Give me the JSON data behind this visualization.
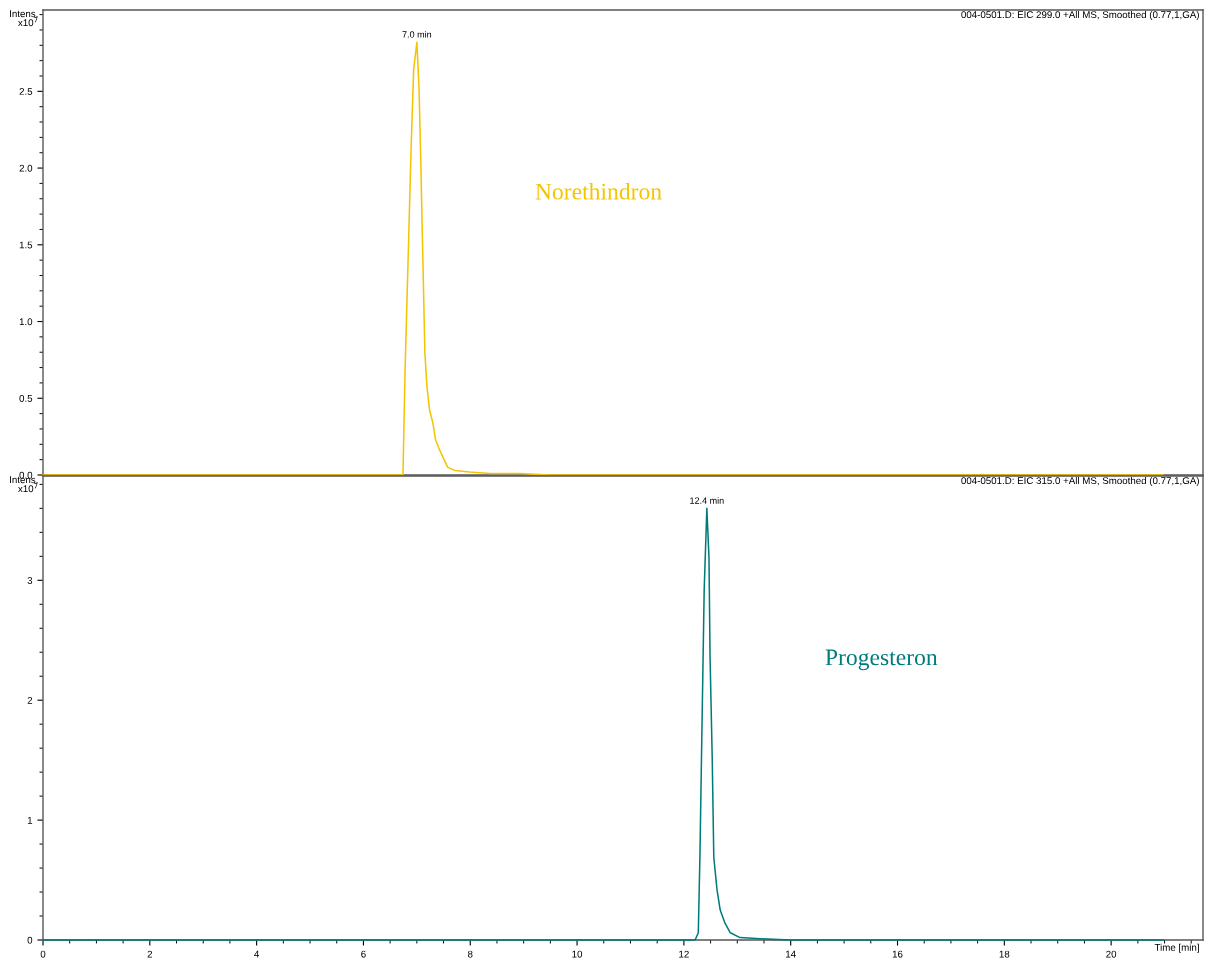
{
  "chart_data": [
    {
      "type": "line",
      "title": "004-0501.D: EIC 299.0 +All MS, Smoothed (0.77,1,GA)",
      "ylabel": "Intens.\nx10$^{7}$",
      "xlim": [
        0,
        21.72
      ],
      "ylim": [
        0,
        3.03
      ],
      "yticks": [
        {
          "value": 0,
          "label": "0.0"
        },
        {
          "value": 0.5,
          "label": "0.5"
        },
        {
          "value": 1,
          "label": "1.0"
        },
        {
          "value": 1.5,
          "label": "1.5"
        },
        {
          "value": 2,
          "label": "2.0"
        },
        {
          "value": 2.5,
          "label": "2.5"
        }
      ],
      "tick_labels": "y",
      "series": [
        {
          "name": "Norethindron",
          "color": "#f5c400",
          "x": [
            0,
            6.74,
            6.78,
            6.84,
            6.89,
            6.94,
            7.0,
            7.04,
            7.07,
            7.11,
            7.15,
            7.19,
            7.24,
            7.3,
            7.35,
            7.43,
            7.51,
            7.58,
            7.71,
            7.99,
            8.37,
            8.93,
            9.5,
            20.97
          ],
          "values": [
            0,
            0,
            0.69,
            1.45,
            2.1,
            2.64,
            2.82,
            2.53,
            2.1,
            1.45,
            0.8,
            0.57,
            0.42,
            0.34,
            0.23,
            0.16,
            0.1,
            0.05,
            0.03,
            0.02,
            0.01,
            0.01,
            0,
            0
          ]
        }
      ],
      "annotations": [
        {
          "text": "7.0 min",
          "x": 7.0,
          "y": 2.82
        }
      ]
    },
    {
      "type": "line",
      "title": "004-0501.D: EIC 315.0 +All MS, Smoothed (0.77,1,GA)",
      "ylabel": "Intens.\nx10$^{7}$",
      "xlabel": "Time [min]",
      "xlim": [
        0,
        21.72
      ],
      "ylim": [
        0,
        3.87
      ],
      "xticks": [
        0,
        2,
        4,
        6,
        8,
        10,
        12,
        14,
        16,
        18,
        20
      ],
      "yticks": [
        0,
        1,
        2,
        3
      ],
      "series": [
        {
          "name": "Progesteron",
          "color": "#007b7b",
          "x": [
            0,
            12.21,
            12.27,
            12.3,
            12.34,
            12.38,
            12.43,
            12.47,
            12.49,
            12.53,
            12.56,
            12.62,
            12.68,
            12.77,
            12.87,
            13.05,
            13.43,
            14.0,
            20.97
          ],
          "values": [
            0,
            0,
            0.06,
            0.69,
            1.81,
            2.92,
            3.6,
            3.19,
            2.36,
            1.53,
            0.69,
            0.42,
            0.25,
            0.14,
            0.06,
            0.02,
            0.01,
            0,
            0
          ]
        }
      ],
      "annotations": [
        {
          "text": "12.4 min",
          "x": 12.43,
          "y": 3.6
        }
      ]
    }
  ]
}
